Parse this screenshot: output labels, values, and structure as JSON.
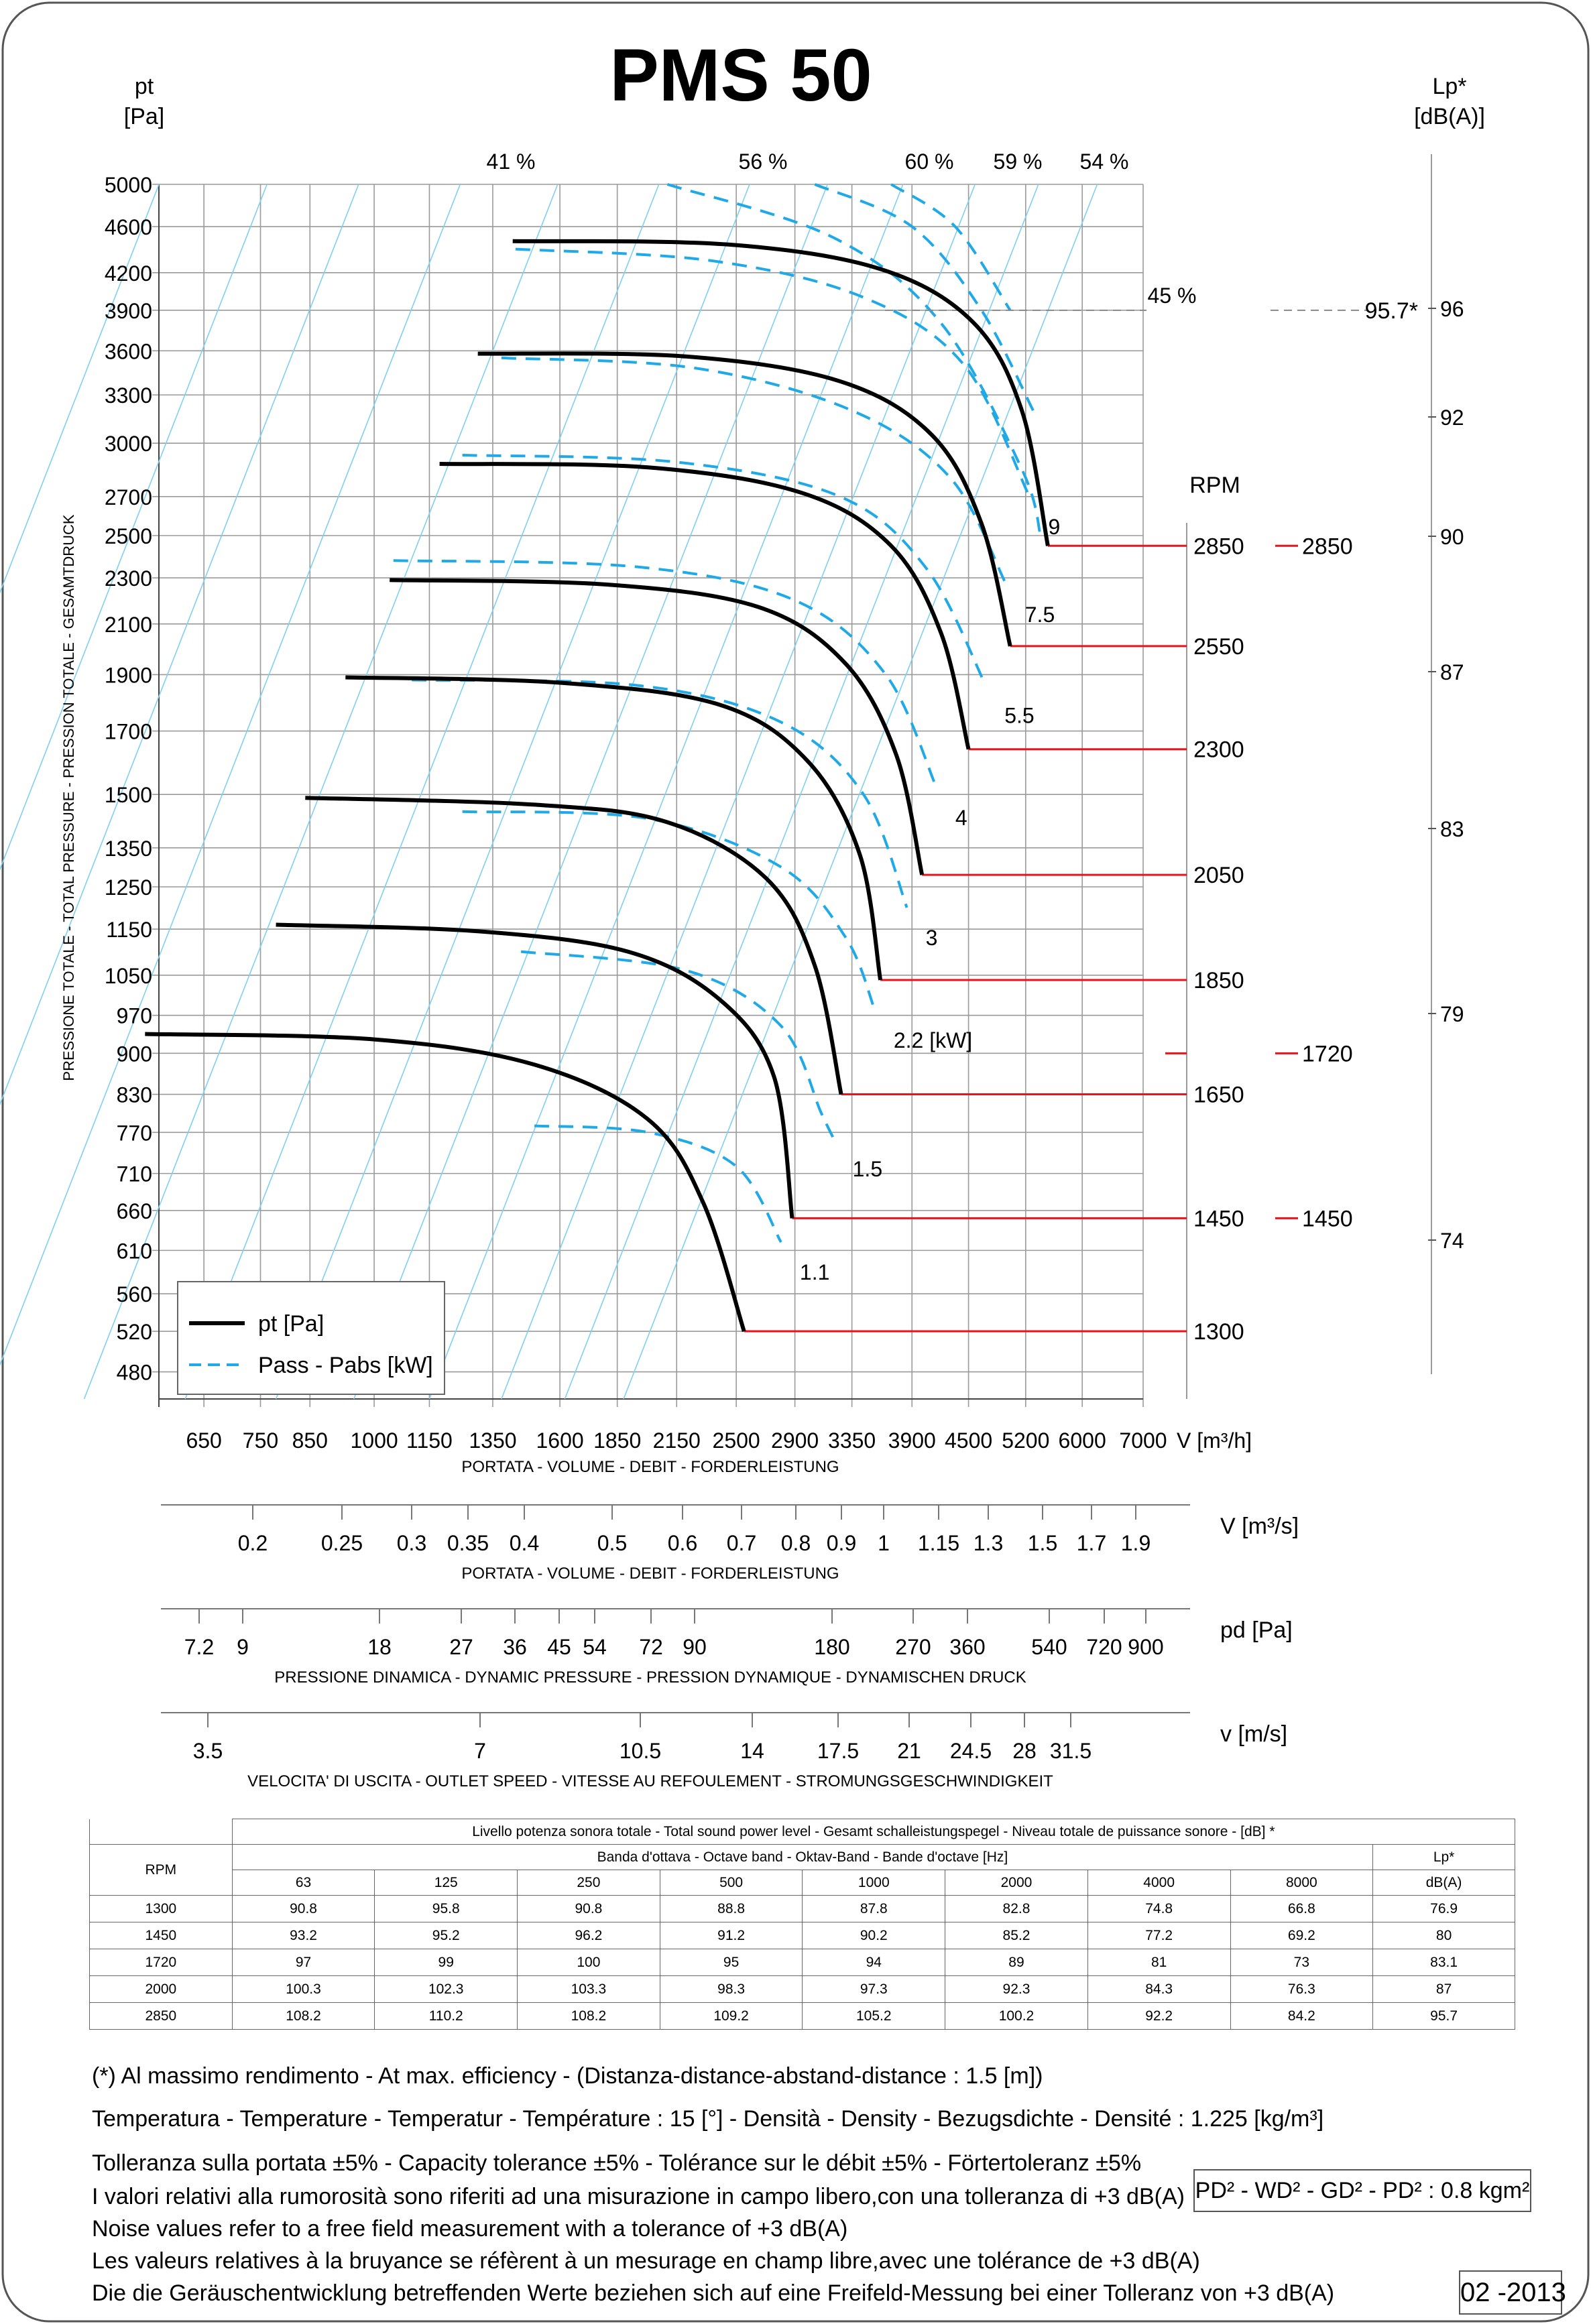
{
  "title": "PMS 50",
  "colors": {
    "curve": "#000000",
    "power": "#1fa9e6",
    "rpm_line": "#e8141b",
    "grid": "#9a9a9a",
    "eff_line": "#7fd0f0"
  },
  "chart_data": {
    "type": "line",
    "title": "PMS 50",
    "x_label": "V [m³/h]",
    "x_caption": "PORTATA - VOLUME - DEBIT - FORDERLEISTUNG",
    "y_label_left": [
      "pt",
      "[Pa]"
    ],
    "y_caption_left": "PRESSIONE TOTALE - TOTAL PRESSURE - PRESSION TOTALE - GESAMTDRUCK",
    "y_label_right": [
      "Lp*",
      "[dB(A)]"
    ],
    "log_scale": true,
    "x_ticks": [
      650,
      750,
      850,
      1000,
      1150,
      1350,
      1600,
      1850,
      2150,
      2500,
      2900,
      3350,
      3900,
      4500,
      5200,
      6000,
      7000
    ],
    "y_ticks": [
      480,
      520,
      560,
      610,
      660,
      710,
      770,
      830,
      900,
      970,
      1050,
      1150,
      1250,
      1350,
      1500,
      1700,
      1900,
      2100,
      2300,
      2500,
      2700,
      3000,
      3300,
      3600,
      3900,
      4200,
      4600,
      5000
    ],
    "lp_ticks": [
      74,
      79,
      83,
      87,
      90,
      92,
      96
    ],
    "rpm_header": "RPM",
    "pressure_curves": [
      {
        "rpm": 1300,
        "points": [
          [
            560,
            935
          ],
          [
            1000,
            925
          ],
          [
            1500,
            880
          ],
          [
            2000,
            790
          ],
          [
            2300,
            670
          ],
          [
            2550,
            520
          ]
        ]
      },
      {
        "rpm": 1450,
        "points": [
          [
            780,
            1160
          ],
          [
            1300,
            1145
          ],
          [
            1900,
            1100
          ],
          [
            2400,
            1000
          ],
          [
            2750,
            860
          ],
          [
            2880,
            650
          ]
        ]
      },
      {
        "rpm": 1650,
        "points": [
          [
            840,
            1490
          ],
          [
            1500,
            1470
          ],
          [
            2100,
            1420
          ],
          [
            2700,
            1270
          ],
          [
            3050,
            1070
          ],
          [
            3260,
            830
          ]
        ]
      },
      {
        "rpm": 1850,
        "points": [
          [
            930,
            1890
          ],
          [
            1600,
            1870
          ],
          [
            2400,
            1790
          ],
          [
            3000,
            1600
          ],
          [
            3420,
            1330
          ],
          [
            3600,
            1040
          ]
        ]
      },
      {
        "rpm": 2050,
        "points": [
          [
            1040,
            2290
          ],
          [
            1800,
            2270
          ],
          [
            2650,
            2170
          ],
          [
            3300,
            1940
          ],
          [
            3750,
            1620
          ],
          [
            4000,
            1280
          ]
        ]
      },
      {
        "rpm": 2300,
        "points": [
          [
            1180,
            2880
          ],
          [
            2000,
            2860
          ],
          [
            2950,
            2720
          ],
          [
            3700,
            2450
          ],
          [
            4200,
            2060
          ],
          [
            4500,
            1640
          ]
        ]
      },
      {
        "rpm": 2550,
        "points": [
          [
            1300,
            3580
          ],
          [
            2200,
            3560
          ],
          [
            3250,
            3390
          ],
          [
            4100,
            3050
          ],
          [
            4650,
            2560
          ],
          [
            5000,
            2010
          ]
        ]
      },
      {
        "rpm": 2850,
        "points": [
          [
            1420,
            4470
          ],
          [
            2450,
            4440
          ],
          [
            3600,
            4230
          ],
          [
            4550,
            3810
          ],
          [
            5150,
            3200
          ],
          [
            5500,
            2450
          ]
        ]
      }
    ],
    "power_curves": [
      {
        "label": "1.1",
        "points": [
          [
            1500,
            780
          ],
          [
            2000,
            770
          ],
          [
            2500,
            720
          ],
          [
            2800,
            620
          ]
        ]
      },
      {
        "label": "1.5",
        "points": [
          [
            1450,
            1100
          ],
          [
            2200,
            1060
          ],
          [
            2800,
            950
          ],
          [
            3100,
            800
          ],
          [
            3200,
            760
          ]
        ]
      },
      {
        "label": "2.2  [kW]",
        "points": [
          [
            1250,
            1450
          ],
          [
            2000,
            1430
          ],
          [
            2800,
            1300
          ],
          [
            3300,
            1130
          ],
          [
            3550,
            980
          ]
        ]
      },
      {
        "label": "3",
        "points": [
          [
            1100,
            1880
          ],
          [
            1950,
            1860
          ],
          [
            2800,
            1730
          ],
          [
            3450,
            1500
          ],
          [
            3850,
            1200
          ]
        ]
      },
      {
        "label": "4",
        "points": [
          [
            1050,
            2380
          ],
          [
            1950,
            2350
          ],
          [
            2900,
            2200
          ],
          [
            3650,
            1900
          ],
          [
            4150,
            1520
          ]
        ]
      },
      {
        "label": "5.5",
        "points": [
          [
            1250,
            2930
          ],
          [
            2150,
            2890
          ],
          [
            3250,
            2700
          ],
          [
            4050,
            2340
          ],
          [
            4700,
            1860
          ]
        ]
      },
      {
        "label": "7.5",
        "points": [
          [
            1380,
            3550
          ],
          [
            2250,
            3480
          ],
          [
            3350,
            3200
          ],
          [
            4300,
            2800
          ],
          [
            4950,
            2270
          ]
        ]
      },
      {
        "label": "9",
        "points": [
          [
            1430,
            4400
          ],
          [
            2350,
            4300
          ],
          [
            3450,
            4000
          ],
          [
            4450,
            3500
          ],
          [
            5250,
            2700
          ]
        ]
      },
      {
        "label": "",
        "points": [
          [
            2100,
            5000
          ],
          [
            3200,
            4500
          ],
          [
            4200,
            3800
          ],
          [
            5150,
            2850
          ],
          [
            5400,
            2500
          ]
        ]
      },
      {
        "label": "",
        "points": [
          [
            3050,
            5000
          ],
          [
            3900,
            4600
          ],
          [
            4650,
            3900
          ],
          [
            5300,
            3200
          ]
        ]
      },
      {
        "label": "",
        "points": [
          [
            3700,
            5000
          ],
          [
            4350,
            4600
          ],
          [
            5000,
            3900
          ]
        ]
      }
    ],
    "efficiency_lines": [
      {
        "label": "41 %"
      },
      {
        "label": "56 %"
      },
      {
        "label": "60 %"
      },
      {
        "label": "59 %"
      },
      {
        "label": "54 %"
      },
      {
        "label": "45 %"
      }
    ],
    "rpm_labels": [
      {
        "rpm": "1300",
        "pressure": 520,
        "lp": ""
      },
      {
        "rpm": "1450",
        "pressure": 650,
        "lp": "1450"
      },
      {
        "rpm": "1650",
        "pressure": 830,
        "lp": ""
      },
      {
        "rpm": "1850",
        "pressure": 1040,
        "lp": ""
      },
      {
        "rpm": "2050",
        "pressure": 1280,
        "lp": ""
      },
      {
        "rpm": "2300",
        "pressure": 1640,
        "lp": ""
      },
      {
        "rpm": "2550",
        "pressure": 2010,
        "lp": ""
      },
      {
        "rpm": "2850",
        "pressure": 2450,
        "lp": "2850"
      },
      {
        "rpm": "",
        "pressure": 900,
        "lp": "1720"
      }
    ],
    "max_efficiency_note": {
      "label": "95.7*",
      "pressure": 3900
    },
    "legend": [
      {
        "label": "pt [Pa]",
        "style": "solid"
      },
      {
        "label": "Pass - Pabs [kW]",
        "style": "dashed"
      }
    ],
    "secondary_axes": [
      {
        "label": "V  [m³/s]",
        "caption": "PORTATA - VOLUME - DEBIT - FORDERLEISTUNG",
        "ticks": [
          "0.2",
          "0.25",
          "0.3",
          "0.35",
          "0.4",
          "0.5",
          "0.6",
          "0.7",
          "0.8",
          "0.9",
          "1",
          "1.15",
          "1.3",
          "1.5",
          "1.7",
          "1.9"
        ]
      },
      {
        "label": "pd  [Pa]",
        "caption": "PRESSIONE DINAMICA - DYNAMIC PRESSURE - PRESSION DYNAMIQUE - DYNAMISCHEN DRUCK",
        "ticks": [
          "7.2",
          "9",
          "18",
          "27",
          "36",
          "45",
          "54",
          "72",
          "90",
          "180",
          "270",
          "360",
          "540",
          "720",
          "900"
        ]
      },
      {
        "label": "v  [m/s]",
        "caption": "VELOCITA' DI USCITA - OUTLET SPEED - VITESSE AU REFOULEMENT - STROMUNGSGESCHWINDIGKEIT",
        "ticks": [
          "3.5",
          "7",
          "10.5",
          "14",
          "17.5",
          "21",
          "24.5",
          "28",
          "31.5"
        ]
      }
    ]
  },
  "sound_table": {
    "caption": "Livello potenza sonora totale - Total sound power level - Gesamt schalleistungspegel - Niveau totale de puissance sonore - [dB]   *",
    "band_caption": "Banda d'ottava - Octave band - Oktav-Band - Bande d'octave [Hz]",
    "rpm_header": "RPM",
    "lp_header": "Lp*",
    "lp_unit": "dB(A)",
    "bands": [
      "63",
      "125",
      "250",
      "500",
      "1000",
      "2000",
      "4000",
      "8000"
    ],
    "rows": [
      {
        "rpm": "1300",
        "values": [
          "90.8",
          "95.8",
          "90.8",
          "88.8",
          "87.8",
          "82.8",
          "74.8",
          "66.8"
        ],
        "lp": "76.9"
      },
      {
        "rpm": "1450",
        "values": [
          "93.2",
          "95.2",
          "96.2",
          "91.2",
          "90.2",
          "85.2",
          "77.2",
          "69.2"
        ],
        "lp": "80"
      },
      {
        "rpm": "1720",
        "values": [
          "97",
          "99",
          "100",
          "95",
          "94",
          "89",
          "81",
          "73"
        ],
        "lp": "83.1"
      },
      {
        "rpm": "2000",
        "values": [
          "100.3",
          "102.3",
          "103.3",
          "98.3",
          "97.3",
          "92.3",
          "84.3",
          "76.3"
        ],
        "lp": "87"
      },
      {
        "rpm": "2850",
        "values": [
          "108.2",
          "110.2",
          "108.2",
          "109.2",
          "105.2",
          "100.2",
          "92.2",
          "84.2"
        ],
        "lp": "95.7"
      }
    ]
  },
  "notes": {
    "max_efficiency": "(*) Al massimo rendimento - At max. efficiency - (Distanza-distance-abstand-distance : 1.5 [m])",
    "conditions": "Temperatura - Temperature - Temperatur - Température : 15 [°]  -  Densità - Density - Bezugsdichte - Densité : 1.225 [kg/m³]",
    "tolerance": "Tolleranza sulla portata  ±5% - Capacity tolerance ±5% - Tolérance sur le débit ±5% - Förtertoleranz ±5%",
    "noise_it": "I valori relativi alla rumorosità sono riferiti ad una misurazione in campo libero,con una tolleranza di +3 dB(A)",
    "noise_en": "Noise values refer to a free field measurement with a tolerance of +3 dB(A)",
    "noise_fr": "Les valeurs relatives à la bruyance se réfèrent à un mesurage en champ libre,avec une tolérance de +3 dB(A)",
    "noise_de": "Die die Geräuschentwicklung betreffenden Werte beziehen sich auf eine Freifeld-Messung bei einer Tolleranz von +3 dB(A)",
    "inertia": "PD² -  WD² - GD² -  PD²  :  0.8 kgm²",
    "date": "02 -2013"
  }
}
